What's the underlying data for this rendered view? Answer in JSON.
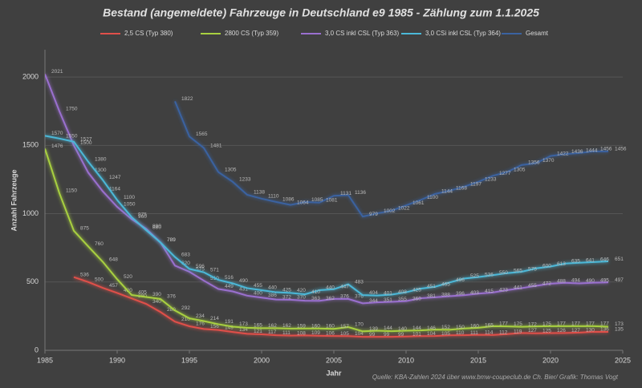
{
  "chart_data": {
    "type": "line",
    "title": "Bestand (angemeldete) Fahrzeuge in Deutschland e9 1985 -  Zählung zum 1.1.2025",
    "x_label": "Jahr",
    "y_label": "Anzahl Fahrzeuge",
    "source": "Quelle: KBA-Zahlen 2024 über www.bmw-coupeclub.de  Ch. Bier/ Grafik: Thomas Vogt",
    "xlim": [
      1985,
      2025
    ],
    "xticks": [
      1985,
      1990,
      1995,
      2000,
      2005,
      2010,
      2015,
      2020,
      2025
    ],
    "ylim": [
      0,
      2200
    ],
    "yticks": [
      0,
      500,
      1000,
      1500,
      2000
    ],
    "grid": true,
    "x": [
      1985,
      1986,
      1987,
      1988,
      1989,
      1990,
      1991,
      1992,
      1993,
      1994,
      1995,
      1996,
      1997,
      1998,
      1999,
      2000,
      2001,
      2002,
      2003,
      2004,
      2005,
      2006,
      2007,
      2008,
      2009,
      2010,
      2011,
      2012,
      2013,
      2014,
      2015,
      2016,
      2017,
      2018,
      2019,
      2020,
      2021,
      2022,
      2023,
      2024
    ],
    "series": [
      {
        "name": "2,5 CS (Typ 380)",
        "color": "#e0504a",
        "values": [
          null,
          null,
          536,
          500,
          457,
          420,
          380,
          340,
          280,
          210,
          176,
          156,
          149,
          134,
          121,
          117,
          111,
          108,
          109,
          106,
          105,
          104,
          99,
          99,
          99,
          101,
          104,
          105,
          110,
          111,
          114,
          112,
          119,
          127,
          125,
          126,
          127,
          130,
          136,
          135
        ]
      },
      {
        "name": "2800 CS (Typ 359)",
        "color": "#a8d040",
        "values": [
          1476,
          1150,
          875,
          760,
          648,
          520,
          405,
          390,
          376,
          292,
          234,
          214,
          191,
          173,
          165,
          162,
          162,
          159,
          160,
          160,
          157,
          170,
          139,
          144,
          140,
          144,
          146,
          152,
          150,
          160,
          165,
          177,
          175,
          172,
          175,
          177,
          177,
          177,
          177,
          173
        ]
      },
      {
        "name": "3,0 CS inkl CSL (Typ 363)",
        "color": "#9a6fcf",
        "values": [
          2021,
          1750,
          1500,
          1300,
          1164,
          1050,
          960,
          890,
          789,
          620,
          575,
          510,
          449,
          431,
          400,
          386,
          372,
          370,
          363,
          362,
          376,
          376,
          344,
          351,
          355,
          360,
          381,
          388,
          396,
          403,
          415,
          423,
          441,
          455,
          472,
          488,
          494,
          490,
          495,
          497
        ]
      },
      {
        "name": "3,0 CSi inkl CSL (Typ 364)",
        "color": "#4bb8d8",
        "values": [
          1570,
          1550,
          1527,
          1380,
          1247,
          1100,
          975,
          880,
          789,
          683,
          596,
          571,
          516,
          490,
          455,
          440,
          425,
          420,
          410,
          440,
          447,
          483,
          404,
          401,
          408,
          425,
          451,
          465,
          496,
          525,
          536,
          550,
          565,
          575,
          600,
          613,
          635,
          641,
          646,
          651
        ]
      },
      {
        "name": "Gesamt",
        "color": "#3a62a0",
        "values": [
          null,
          null,
          null,
          null,
          null,
          null,
          null,
          null,
          null,
          1822,
          1565,
          1481,
          1305,
          1233,
          1138,
          1110,
          1086,
          1064,
          1085,
          1081,
          1131,
          1136,
          979,
          1002,
          1022,
          1061,
          1100,
          1144,
          1168,
          1197,
          1233,
          1277,
          1305,
          1356,
          1370,
          1422,
          1436,
          1444,
          1456,
          1456
        ]
      }
    ]
  }
}
